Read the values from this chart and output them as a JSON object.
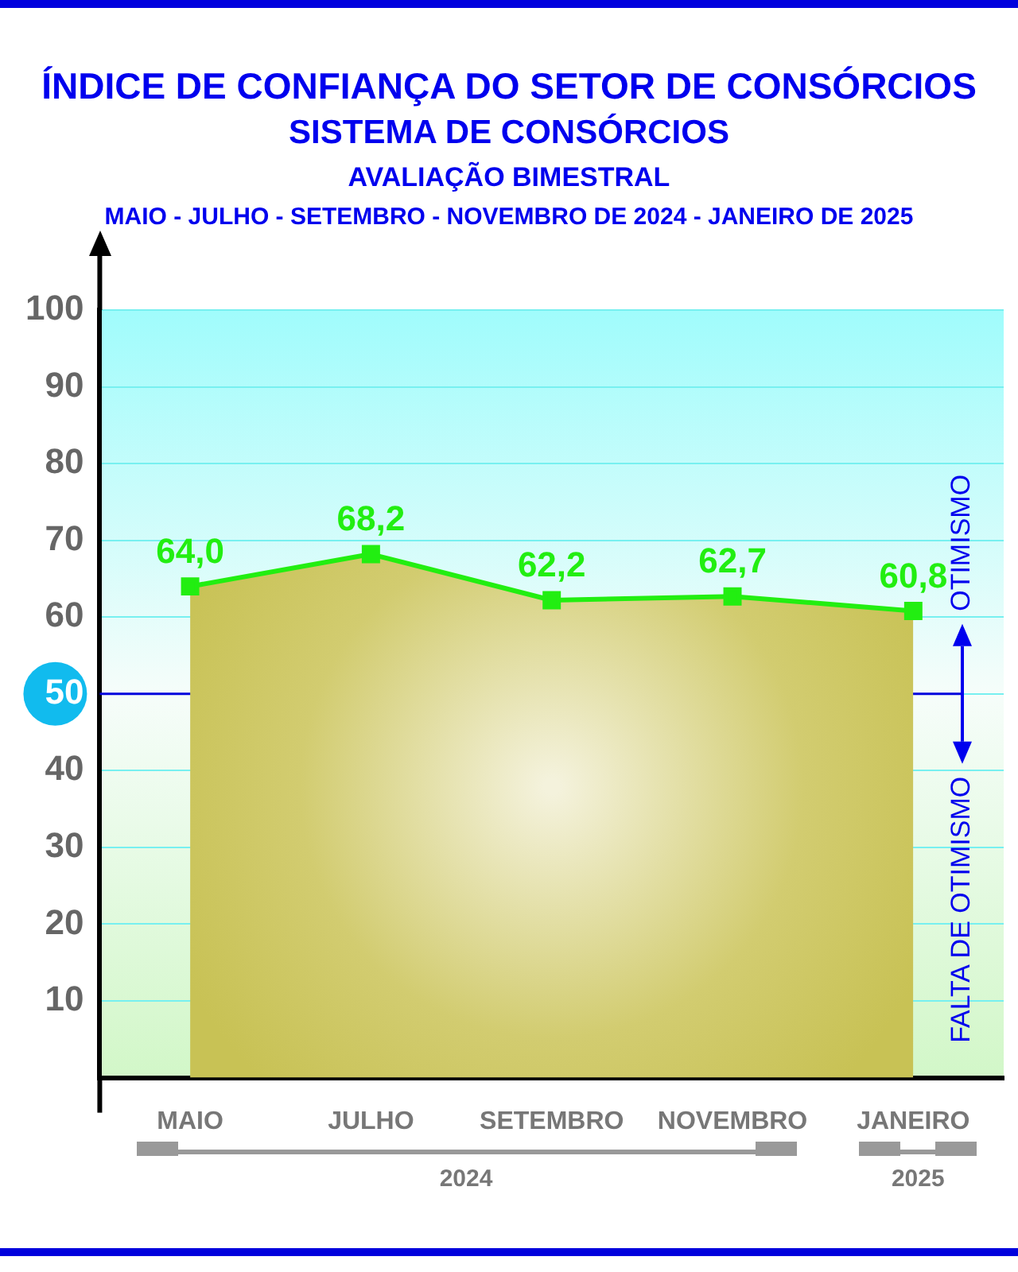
{
  "chart_data": {
    "type": "area",
    "title": "ÍNDICE DE CONFIANÇA DO SETOR DE CONSÓRCIOS",
    "subtitle": "SISTEMA DE CONSÓRCIOS",
    "annotations": [
      "AVALIAÇÃO BIMESTRAL",
      "MAIO - JULHO - SETEMBRO - NOVEMBRO DE 2024 - JANEIRO DE 2025",
      "OTIMISMO",
      "FALTA DE OTIMISMO",
      "2024",
      "2025"
    ],
    "categories": [
      "MAIO",
      "JULHO",
      "SETEMBRO",
      "NOVEMBRO",
      "JANEIRO"
    ],
    "series": [
      {
        "color": "#22ee11",
        "values": [
          64.0,
          68.2,
          62.2,
          62.7,
          60.8
        ],
        "value_labels": [
          "64,0",
          "68,2",
          "62,2",
          "62,7",
          "60,8"
        ]
      }
    ],
    "ylim": [
      0,
      100
    ],
    "yticks": [
      10,
      20,
      30,
      40,
      50,
      60,
      70,
      80,
      90,
      100
    ],
    "ref_lines": [
      {
        "axis": "y",
        "value": 50,
        "color": "#0000dd"
      }
    ],
    "grid": "y",
    "marker": "square"
  }
}
